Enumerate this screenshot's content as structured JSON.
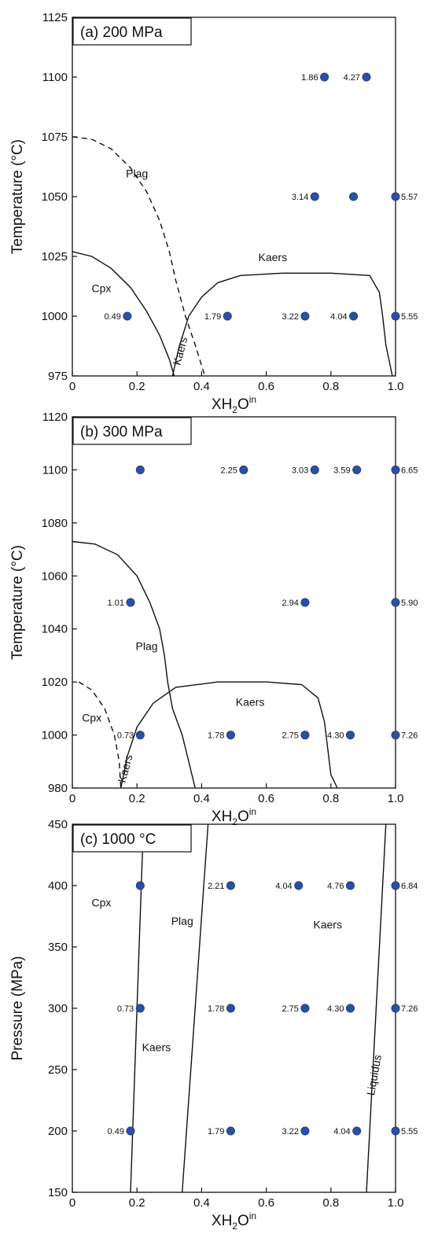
{
  "chart_data": [
    {
      "type": "scatter",
      "panel_title": "(a) 200 MPa",
      "xlabel": "XH2Oin",
      "xlabel_parts": {
        "base": "XH",
        "sub": "2",
        "mid": "O",
        "sup": "in"
      },
      "ylabel": "Temperature (°C)",
      "xlim": [
        0,
        1.0
      ],
      "ylim": [
        975,
        1125
      ],
      "xticks": [
        "0",
        "0.2",
        "0.4",
        "0.6",
        "0.8",
        "1.0"
      ],
      "xtick_values": [
        0,
        0.2,
        0.4,
        0.6,
        0.8,
        1.0
      ],
      "yticks": [
        "975",
        "1000",
        "1025",
        "1050",
        "1075",
        "1100",
        "1125"
      ],
      "ytick_values": [
        975,
        1000,
        1025,
        1050,
        1075,
        1100,
        1125
      ],
      "grid": false,
      "marker_color": "#2a4fa3",
      "points": [
        {
          "x": 0.17,
          "y": 1000,
          "label": "0.49"
        },
        {
          "x": 0.48,
          "y": 1000,
          "label": "1.79"
        },
        {
          "x": 0.72,
          "y": 1000,
          "label": "3.22"
        },
        {
          "x": 0.87,
          "y": 1000,
          "label": "4.04"
        },
        {
          "x": 1.0,
          "y": 1000,
          "label": "5.55"
        },
        {
          "x": 0.75,
          "y": 1050,
          "label": "3.14"
        },
        {
          "x": 0.87,
          "y": 1050,
          "label": ""
        },
        {
          "x": 1.0,
          "y": 1050,
          "label": "5.57"
        },
        {
          "x": 0.78,
          "y": 1100,
          "label": "1.86"
        },
        {
          "x": 0.91,
          "y": 1100,
          "label": "4.27"
        }
      ],
      "curves": [
        {
          "name": "Plag",
          "style": "dashed",
          "points": [
            [
              0,
              1075
            ],
            [
              0.06,
              1074
            ],
            [
              0.12,
              1070
            ],
            [
              0.18,
              1062
            ],
            [
              0.23,
              1052
            ],
            [
              0.27,
              1040
            ],
            [
              0.3,
              1027
            ],
            [
              0.32,
              1015
            ],
            [
              0.35,
              1000
            ],
            [
              0.38,
              988
            ],
            [
              0.41,
              975
            ]
          ]
        },
        {
          "name": "Cpx",
          "style": "solid",
          "points": [
            [
              0,
              1027
            ],
            [
              0.06,
              1025
            ],
            [
              0.12,
              1020
            ],
            [
              0.18,
              1012
            ],
            [
              0.23,
              1002
            ],
            [
              0.27,
              992
            ],
            [
              0.3,
              982
            ],
            [
              0.315,
              975
            ]
          ]
        },
        {
          "name": "Kaers",
          "style": "solid",
          "points": [
            [
              0.31,
              975
            ],
            [
              0.33,
              987
            ],
            [
              0.36,
              1000
            ],
            [
              0.4,
              1008
            ],
            [
              0.45,
              1014
            ],
            [
              0.52,
              1017
            ],
            [
              0.65,
              1018
            ],
            [
              0.8,
              1018
            ],
            [
              0.92,
              1017
            ],
            [
              0.95,
              1010
            ],
            [
              0.96,
              1000
            ],
            [
              0.97,
              988
            ],
            [
              0.99,
              975
            ]
          ]
        }
      ],
      "region_labels": [
        {
          "text": "Plag",
          "x": 0.2,
          "y": 1058
        },
        {
          "text": "Cpx",
          "x": 0.09,
          "y": 1010
        },
        {
          "text": "Kaers",
          "x": 0.62,
          "y": 1023
        },
        {
          "text": "Kaers",
          "x": 0.345,
          "y": 985,
          "rotate": -75
        }
      ]
    },
    {
      "type": "scatter",
      "panel_title": "(b) 300 MPa",
      "xlabel": "XH2Oin",
      "xlabel_parts": {
        "base": "XH",
        "sub": "2",
        "mid": "O",
        "sup": "in"
      },
      "ylabel": "Temperature (°C)",
      "xlim": [
        0,
        1.0
      ],
      "ylim": [
        980,
        1120
      ],
      "xticks": [
        "0",
        "0.2",
        "0.4",
        "0.6",
        "0.8",
        "1.0"
      ],
      "xtick_values": [
        0,
        0.2,
        0.4,
        0.6,
        0.8,
        1.0
      ],
      "yticks": [
        "980",
        "1000",
        "1020",
        "1040",
        "1060",
        "1080",
        "1100",
        "1120"
      ],
      "ytick_values": [
        980,
        1000,
        1020,
        1040,
        1060,
        1080,
        1100,
        1120
      ],
      "grid": false,
      "marker_color": "#2a4fa3",
      "points": [
        {
          "x": 0.21,
          "y": 1100,
          "label": ""
        },
        {
          "x": 0.53,
          "y": 1100,
          "label": "2.25"
        },
        {
          "x": 0.75,
          "y": 1100,
          "label": "3.03"
        },
        {
          "x": 0.88,
          "y": 1100,
          "label": "3.59"
        },
        {
          "x": 1.0,
          "y": 1100,
          "label": "6.65"
        },
        {
          "x": 0.18,
          "y": 1050,
          "label": "1.01"
        },
        {
          "x": 0.72,
          "y": 1050,
          "label": "2.94"
        },
        {
          "x": 1.0,
          "y": 1050,
          "label": "5.90"
        },
        {
          "x": 0.21,
          "y": 1000,
          "label": "0.73"
        },
        {
          "x": 0.49,
          "y": 1000,
          "label": "1.78"
        },
        {
          "x": 0.72,
          "y": 1000,
          "label": "2.75"
        },
        {
          "x": 0.86,
          "y": 1000,
          "label": "4.30"
        },
        {
          "x": 1.0,
          "y": 1000,
          "label": "7.26"
        }
      ],
      "curves": [
        {
          "name": "Plag",
          "style": "solid",
          "points": [
            [
              0,
              1073
            ],
            [
              0.07,
              1072
            ],
            [
              0.14,
              1068
            ],
            [
              0.2,
              1060
            ],
            [
              0.24,
              1050
            ],
            [
              0.27,
              1040
            ],
            [
              0.285,
              1030
            ],
            [
              0.295,
              1020
            ],
            [
              0.31,
              1010
            ],
            [
              0.34,
              1000
            ],
            [
              0.36,
              990
            ],
            [
              0.38,
              980
            ]
          ]
        },
        {
          "name": "Cpx",
          "style": "dashed",
          "points": [
            [
              0.02,
              1020
            ],
            [
              0.06,
              1017
            ],
            [
              0.1,
              1010
            ],
            [
              0.13,
              1000
            ],
            [
              0.145,
              990
            ],
            [
              0.15,
              980
            ]
          ]
        },
        {
          "name": "Kaers",
          "style": "solid",
          "points": [
            [
              0.15,
              980
            ],
            [
              0.17,
              992
            ],
            [
              0.2,
              1003
            ],
            [
              0.25,
              1012
            ],
            [
              0.32,
              1018
            ],
            [
              0.45,
              1020
            ],
            [
              0.6,
              1020
            ],
            [
              0.71,
              1019
            ],
            [
              0.76,
              1014
            ],
            [
              0.78,
              1005
            ],
            [
              0.79,
              995
            ],
            [
              0.8,
              985
            ],
            [
              0.82,
              980
            ]
          ]
        }
      ],
      "region_labels": [
        {
          "text": "Plag",
          "x": 0.23,
          "y": 1032
        },
        {
          "text": "Cpx",
          "x": 0.06,
          "y": 1005
        },
        {
          "text": "Kaers",
          "x": 0.55,
          "y": 1011
        },
        {
          "text": "Kaers",
          "x": 0.175,
          "y": 987,
          "rotate": -75
        }
      ]
    },
    {
      "type": "scatter",
      "panel_title": "(c) 1000 °C",
      "xlabel": "XH2Oin",
      "xlabel_parts": {
        "base": "XH",
        "sub": "2",
        "mid": "O",
        "sup": "in"
      },
      "ylabel": "Pressure (MPa)",
      "xlim": [
        0,
        1.0
      ],
      "ylim": [
        150,
        450
      ],
      "xticks": [
        "0",
        "0.2",
        "0.4",
        "0.6",
        "0.8",
        "1.0"
      ],
      "xtick_values": [
        0,
        0.2,
        0.4,
        0.6,
        0.8,
        1.0
      ],
      "yticks": [
        "150",
        "200",
        "250",
        "300",
        "350",
        "400",
        "450"
      ],
      "ytick_values": [
        150,
        200,
        250,
        300,
        350,
        400,
        450
      ],
      "grid": false,
      "marker_color": "#2a4fa3",
      "points": [
        {
          "x": 0.21,
          "y": 400,
          "label": ""
        },
        {
          "x": 0.49,
          "y": 400,
          "label": "2.21"
        },
        {
          "x": 0.7,
          "y": 400,
          "label": "4.04"
        },
        {
          "x": 0.86,
          "y": 400,
          "label": "4.76"
        },
        {
          "x": 1.0,
          "y": 400,
          "label": "6.84"
        },
        {
          "x": 0.21,
          "y": 300,
          "label": "0.73"
        },
        {
          "x": 0.49,
          "y": 300,
          "label": "1.78"
        },
        {
          "x": 0.72,
          "y": 300,
          "label": "2.75"
        },
        {
          "x": 0.86,
          "y": 300,
          "label": "4.30"
        },
        {
          "x": 1.0,
          "y": 300,
          "label": "7.26"
        },
        {
          "x": 0.18,
          "y": 200,
          "label": "0.49"
        },
        {
          "x": 0.49,
          "y": 200,
          "label": "1.79"
        },
        {
          "x": 0.72,
          "y": 200,
          "label": "3.22"
        },
        {
          "x": 0.88,
          "y": 200,
          "label": "4.04"
        },
        {
          "x": 1.0,
          "y": 200,
          "label": "5.55"
        }
      ],
      "curves": [
        {
          "name": "Cpx",
          "style": "solid",
          "points": [
            [
              0.18,
              150
            ],
            [
              0.22,
              450
            ]
          ]
        },
        {
          "name": "Plag",
          "style": "solid",
          "points": [
            [
              0.34,
              150
            ],
            [
              0.42,
              450
            ]
          ]
        },
        {
          "name": "Liquidus",
          "style": "solid",
          "points": [
            [
              0.91,
              150
            ],
            [
              0.97,
              450
            ]
          ]
        }
      ],
      "region_labels": [
        {
          "text": "Cpx",
          "x": 0.09,
          "y": 383
        },
        {
          "text": "Plag",
          "x": 0.34,
          "y": 368
        },
        {
          "text": "Kaers",
          "x": 0.79,
          "y": 365
        },
        {
          "text": "Kaers",
          "x": 0.26,
          "y": 265
        },
        {
          "text": "Liquidus",
          "x": 0.945,
          "y": 245,
          "rotate": -80
        }
      ]
    }
  ]
}
